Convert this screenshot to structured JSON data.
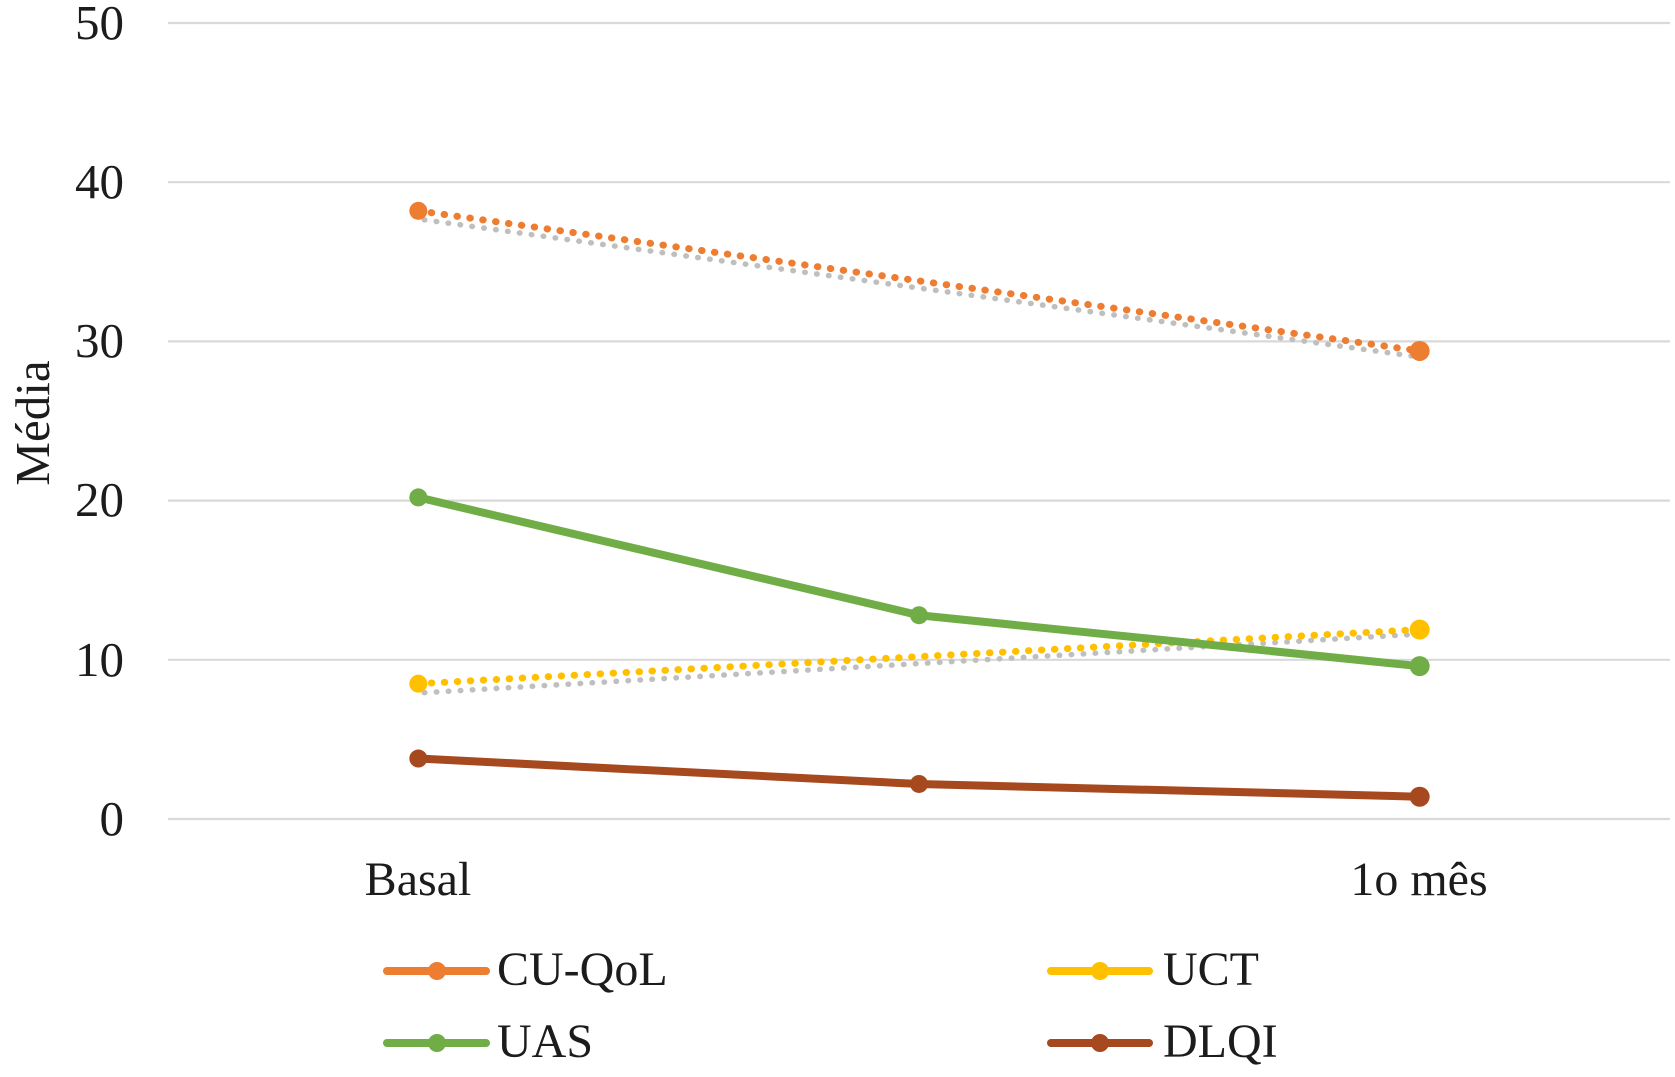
{
  "chart_data": {
    "type": "line",
    "title": "",
    "xlabel": "",
    "ylabel": "Média",
    "categories": [
      "Basal",
      "",
      "1o mês"
    ],
    "y_ticks": [
      "0",
      "10",
      "20",
      "30",
      "40",
      "50"
    ],
    "y_tick_values": [
      0,
      10,
      20,
      30,
      40,
      50
    ],
    "ylim": [
      0,
      50
    ],
    "grid": "horizontal",
    "gridline_color": "#d9d9d9",
    "trendline_color": "#bfbfbf",
    "legend_position": "bottom",
    "series": [
      {
        "name": "CU-QoL",
        "color": "#ED7D31",
        "line_style": "dotted",
        "has_gray_trendline": true,
        "values": [
          38.2,
          null,
          29.4
        ]
      },
      {
        "name": "UCT",
        "color": "#FFC000",
        "line_style": "dotted",
        "has_gray_trendline": true,
        "values": [
          8.5,
          null,
          11.9
        ]
      },
      {
        "name": "UAS",
        "color": "#70AD47",
        "line_style": "solid",
        "has_gray_trendline": false,
        "values": [
          20.2,
          12.8,
          9.6
        ]
      },
      {
        "name": "DLQI",
        "color": "#A6491E",
        "line_style": "solid",
        "has_gray_trendline": false,
        "values": [
          3.8,
          2.2,
          1.4
        ]
      }
    ]
  }
}
